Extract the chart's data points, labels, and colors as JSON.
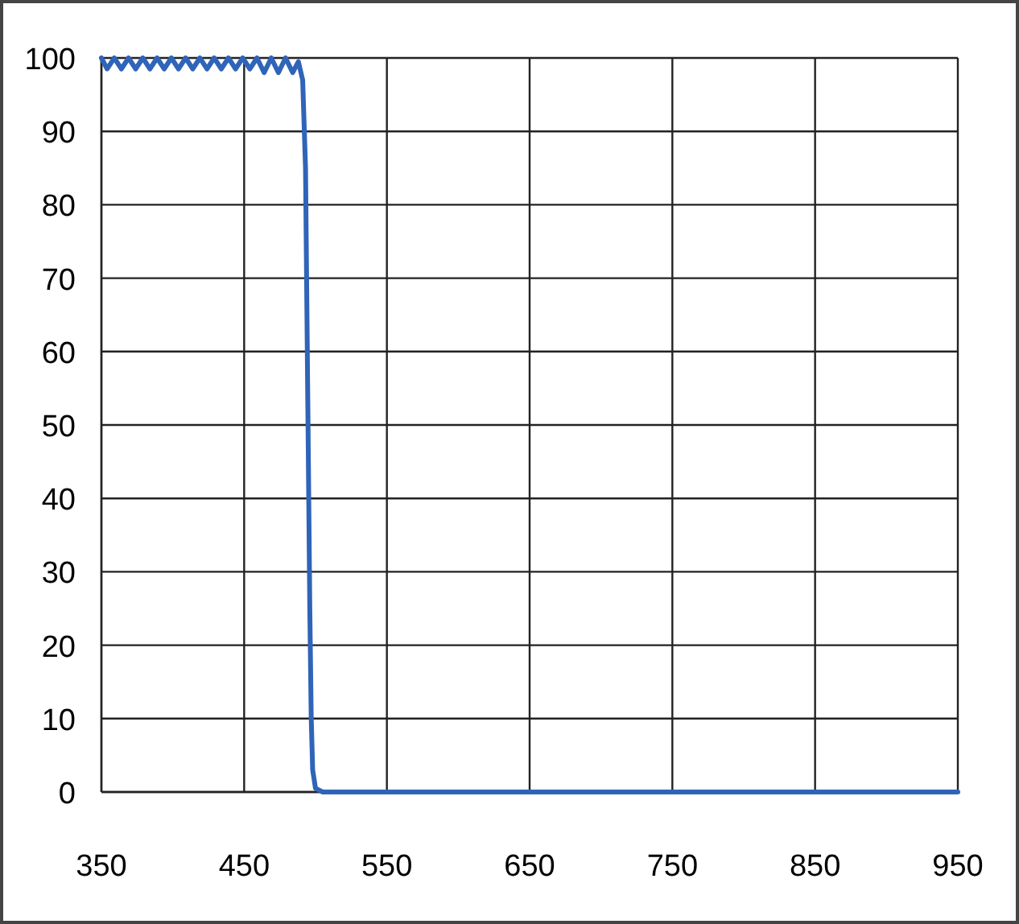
{
  "chart_data": {
    "type": "line",
    "xlim": [
      350,
      950
    ],
    "ylim": [
      0,
      100
    ],
    "xticks": [
      350,
      450,
      550,
      650,
      750,
      850,
      950
    ],
    "yticks": [
      0,
      10,
      20,
      30,
      40,
      50,
      60,
      70,
      80,
      90,
      100
    ],
    "grid": true,
    "series": [
      {
        "color": "#2f64b8",
        "x": [
          350,
          354,
          359,
          364,
          369,
          374,
          379,
          384,
          389,
          394,
          399,
          404,
          409,
          414,
          419,
          424,
          429,
          434,
          439,
          444,
          449,
          454,
          459,
          464,
          469,
          474,
          479,
          484,
          488,
          491,
          493,
          494,
          495,
          496,
          497,
          498,
          500,
          505,
          520,
          600,
          700,
          800,
          950
        ],
        "values": [
          100,
          98.5,
          100,
          98.5,
          100,
          98.5,
          100,
          98.5,
          100,
          98.5,
          100,
          98.5,
          100,
          98.5,
          100,
          98.5,
          100,
          98.5,
          100,
          98.5,
          100,
          98.5,
          100,
          98,
          100,
          98,
          100,
          98,
          99.5,
          97,
          85,
          65,
          45,
          25,
          10,
          3,
          0.5,
          0,
          0,
          0,
          0,
          0,
          0
        ]
      }
    ]
  }
}
